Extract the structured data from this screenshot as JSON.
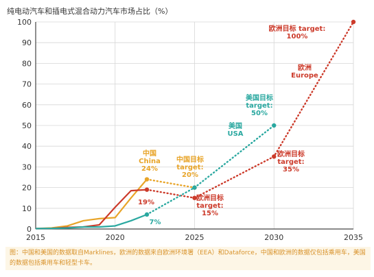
{
  "chart_data": {
    "type": "line",
    "title": "纯电动汽车和插电式混合动力汽车市场占比（%）",
    "ylim": [
      0,
      100
    ],
    "xlim": [
      2015,
      2035
    ],
    "x_ticks": [
      2015,
      2020,
      2025,
      2030,
      2035
    ],
    "y_ticks": [
      0,
      10,
      20,
      30,
      40,
      50,
      60,
      70,
      80,
      90,
      100
    ],
    "grid": true,
    "series": [
      {
        "key": "china",
        "color": "#e8a428",
        "points": [
          [
            2015,
            0.2
          ],
          [
            2016,
            0.5
          ],
          [
            2017,
            1.5
          ],
          [
            2018,
            4
          ],
          [
            2019,
            5
          ],
          [
            2020,
            5.5
          ],
          [
            2021,
            15
          ],
          [
            2022,
            24
          ]
        ],
        "target": [
          [
            2022,
            24
          ],
          [
            2025,
            20
          ]
        ]
      },
      {
        "key": "europe",
        "color": "#cc3a2a",
        "points": [
          [
            2015,
            0.2
          ],
          [
            2016,
            0.3
          ],
          [
            2017,
            0.8
          ],
          [
            2018,
            1
          ],
          [
            2019,
            2
          ],
          [
            2020,
            10.5
          ],
          [
            2021,
            18.5
          ],
          [
            2022,
            19
          ]
        ],
        "target": [
          [
            2022,
            19
          ],
          [
            2025,
            15
          ],
          [
            2030,
            35
          ],
          [
            2035,
            100
          ]
        ]
      },
      {
        "key": "usa",
        "color": "#2aa8a0",
        "points": [
          [
            2015,
            0.2
          ],
          [
            2016,
            0.3
          ],
          [
            2017,
            0.5
          ],
          [
            2018,
            1
          ],
          [
            2019,
            1
          ],
          [
            2020,
            1.5
          ],
          [
            2021,
            4
          ],
          [
            2022,
            7
          ]
        ],
        "target": [
          [
            2022,
            7
          ],
          [
            2025,
            20
          ],
          [
            2030,
            50
          ]
        ]
      }
    ],
    "annotations": [
      {
        "lines": [
          "欧洲目标 target:",
          "100%"
        ],
        "color": "#cc3a2a",
        "x": 2035,
        "y": 100
      },
      {
        "lines": [
          "欧洲",
          "Europe"
        ],
        "color": "#cc3a2a",
        "x": 2032,
        "y": 75
      },
      {
        "lines": [
          "美国目标",
          "target:",
          "50%"
        ],
        "color": "#2aa8a0",
        "x": 2030,
        "y": 50
      },
      {
        "lines": [
          "美国",
          "USA"
        ],
        "color": "#2aa8a0",
        "x": 2029,
        "y": 46
      },
      {
        "lines": [
          "中国",
          "China",
          "24%"
        ],
        "color": "#e8a428",
        "x": 2022,
        "y": 24
      },
      {
        "lines": [
          "中国目标",
          "target:",
          "20%"
        ],
        "color": "#e8a428",
        "x": 2025,
        "y": 20
      },
      {
        "lines": [
          "欧洲目标",
          "target:",
          "35%"
        ],
        "color": "#cc3a2a",
        "x": 2030,
        "y": 35
      },
      {
        "lines": [
          "19%"
        ],
        "color": "#cc3a2a",
        "x": 2022,
        "y": 19
      },
      {
        "lines": [
          "欧洲目标",
          "target:",
          "15%"
        ],
        "color": "#cc3a2a",
        "x": 2025,
        "y": 15
      },
      {
        "lines": [
          "7%"
        ],
        "color": "#2aa8a0",
        "x": 2022,
        "y": 7
      }
    ]
  },
  "footnote": "图：中国和美国的数据取自Marklines，欧洲的数据来自欧洲环境署（EEA）和Dataforce，中国和欧洲的数据仅包括乘用车，美国的数据包括乘用车和轻型卡车。"
}
